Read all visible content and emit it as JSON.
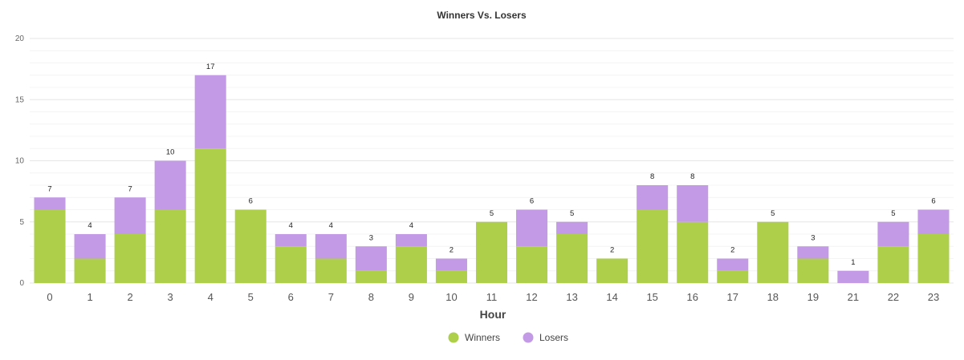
{
  "chart_data": {
    "type": "bar",
    "stacked": true,
    "title": "Winners Vs. Losers",
    "xlabel": "Hour",
    "ylabel": "",
    "ylim": [
      0,
      20
    ],
    "yticks": [
      0,
      5,
      10,
      15,
      20
    ],
    "grid": true,
    "legend_position": "bottom-center",
    "categories": [
      "0",
      "1",
      "2",
      "3",
      "4",
      "5",
      "6",
      "7",
      "8",
      "9",
      "10",
      "11",
      "12",
      "13",
      "14",
      "15",
      "16",
      "17",
      "18",
      "19",
      "21",
      "22",
      "23"
    ],
    "series": [
      {
        "name": "Winners",
        "color": "#aecf4a",
        "values": [
          6,
          2,
          4,
          6,
          11,
          6,
          3,
          2,
          1,
          3,
          1,
          5,
          3,
          4,
          2,
          6,
          5,
          1,
          5,
          2,
          0,
          3,
          4
        ]
      },
      {
        "name": "Losers",
        "color": "#c39ae6",
        "values": [
          1,
          2,
          3,
          4,
          6,
          0,
          1,
          2,
          2,
          1,
          1,
          0,
          3,
          1,
          0,
          2,
          3,
          1,
          0,
          1,
          1,
          2,
          2
        ]
      }
    ],
    "totals": [
      7,
      4,
      7,
      10,
      17,
      6,
      4,
      4,
      3,
      4,
      2,
      5,
      6,
      5,
      2,
      8,
      8,
      2,
      5,
      3,
      1,
      5,
      6
    ]
  }
}
